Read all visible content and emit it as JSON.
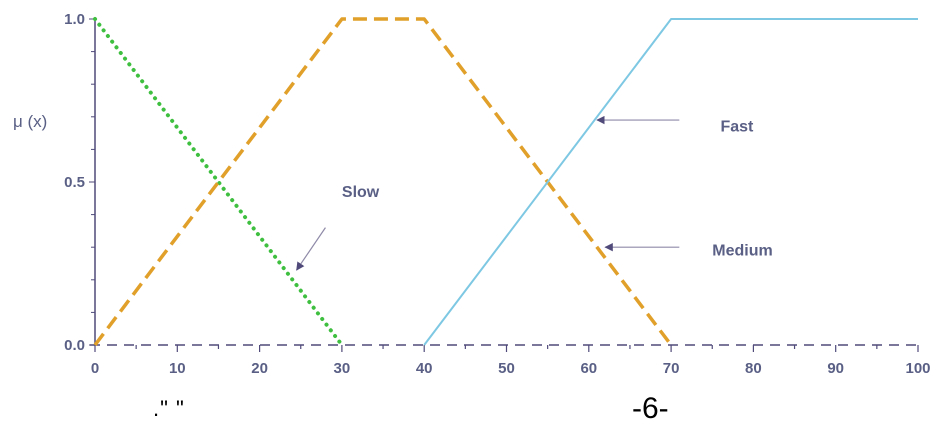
{
  "chart_data": {
    "type": "line",
    "ylabel": "μ (x)",
    "xlim": [
      0,
      100
    ],
    "ylim": [
      0,
      1
    ],
    "x_ticks": [
      0,
      10,
      20,
      30,
      40,
      50,
      60,
      70,
      80,
      90,
      100
    ],
    "x_tick_labels": [
      "0",
      "10",
      "20",
      "30",
      "40",
      "50",
      "60",
      "70",
      "80",
      "90",
      "100"
    ],
    "y_tick_labels": [
      {
        "value": 0.0,
        "label": "0.0"
      },
      {
        "value": 0.5,
        "label": "0.5"
      },
      {
        "value": 1.0,
        "label": "1.0"
      }
    ],
    "grid": false,
    "series": [
      {
        "name": "Slow",
        "color": "#3fbf3f",
        "style": "dotted",
        "points": [
          [
            0,
            1.0
          ],
          [
            30,
            0.0
          ]
        ]
      },
      {
        "name": "Medium",
        "color": "#e0a02a",
        "style": "dashed",
        "points": [
          [
            0,
            0.0
          ],
          [
            30,
            1.0
          ],
          [
            40,
            1.0
          ],
          [
            70,
            0.0
          ]
        ]
      },
      {
        "name": "Fast",
        "color": "#7ec8e3",
        "style": "solid",
        "points": [
          [
            40,
            0.0
          ],
          [
            70,
            1.0
          ],
          [
            100,
            1.0
          ]
        ]
      }
    ],
    "annotations": [
      {
        "text": "Slow",
        "text_at": [
          30,
          0.47
        ],
        "arrow_from": [
          28,
          0.36
        ],
        "arrow_to": [
          24.5,
          0.23
        ]
      },
      {
        "text": "Fast",
        "text_at": [
          76,
          0.67
        ],
        "arrow_from": [
          71,
          0.69
        ],
        "arrow_to": [
          61,
          0.69
        ]
      },
      {
        "text": "Medium",
        "text_at": [
          75,
          0.29
        ],
        "arrow_from": [
          71,
          0.3
        ],
        "arrow_to": [
          62,
          0.3
        ]
      }
    ]
  },
  "footer": {
    "quote_text": ".\"         \"",
    "page_number": "-6-"
  }
}
